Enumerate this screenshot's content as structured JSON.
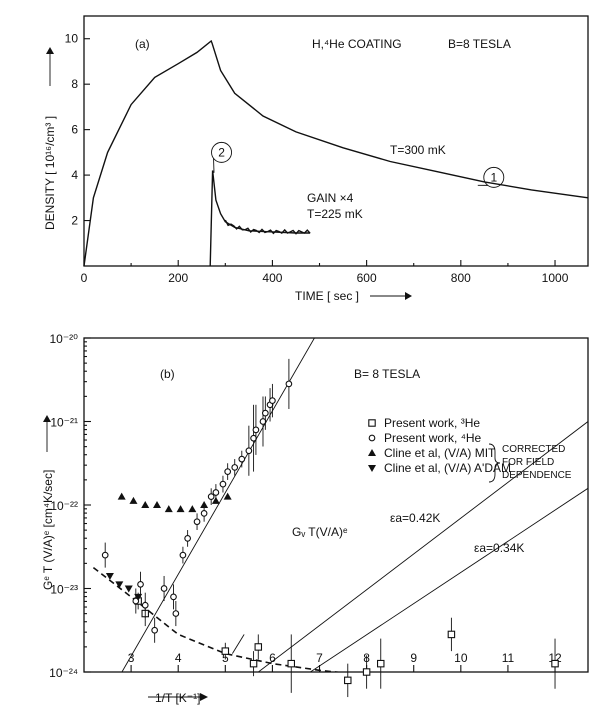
{
  "chart_data": [
    {
      "type": "line",
      "panel_label": "(a)",
      "annotation": "H,⁴He COATING",
      "annotation2": "B=8 TESLA",
      "xlabel": "TIME [ sec ]",
      "ylabel": "DENSITY [ 10¹⁶/cm³ ]",
      "xlim": [
        0,
        1070
      ],
      "ylim": [
        0,
        11
      ],
      "x_ticks": [
        0,
        200,
        400,
        600,
        800,
        1000
      ],
      "y_ticks": [
        2,
        4,
        6,
        8,
        10
      ],
      "series": [
        {
          "id": "1",
          "label": "T=300 mK",
          "marker": "1",
          "x": [
            0,
            20,
            50,
            100,
            150,
            200,
            240,
            270,
            272,
            290,
            320,
            380,
            450,
            550,
            650,
            750,
            850,
            950,
            1070
          ],
          "y": [
            0,
            3.0,
            5.0,
            7.1,
            8.3,
            8.9,
            9.4,
            9.9,
            9.8,
            8.6,
            7.6,
            6.6,
            5.9,
            5.2,
            4.6,
            4.15,
            3.7,
            3.35,
            3.0
          ]
        },
        {
          "id": "2",
          "label": "GAIN ×4",
          "label2": "T=225 mK",
          "marker": "2",
          "x": [
            268,
            273,
            280,
            290,
            300,
            320,
            350,
            400,
            450,
            480
          ],
          "y": [
            0,
            4.2,
            2.9,
            2.3,
            1.95,
            1.7,
            1.55,
            1.5,
            1.45,
            1.45
          ]
        }
      ]
    },
    {
      "type": "scatter",
      "panel_label": "(b)",
      "annotation": "B= 8 TESLA",
      "xlabel": "1/T [K⁻¹]",
      "ylabel": "Gᵉ T (V/A)ᵉ [cm⁴K/sec]",
      "xlim": [
        2.0,
        12.7
      ],
      "ylim_log10": [
        -24,
        -20
      ],
      "x_ticks": [
        3,
        4,
        5,
        6,
        7,
        8,
        9,
        10,
        11,
        12
      ],
      "y_tick_labels": [
        "10⁻²⁰",
        "10⁻²¹",
        "10⁻²²",
        "10⁻²³",
        "10⁻²⁴"
      ],
      "legend": [
        {
          "marker": "square",
          "text": "Present work, ³He"
        },
        {
          "marker": "circle",
          "text": "Present work, ⁴He"
        },
        {
          "marker": "triangle-up",
          "text": "Cline et al, (V/A) MIT"
        },
        {
          "marker": "triangle-down",
          "text": "Cline et al, (V/A) A'DAM"
        }
      ],
      "brace_note": [
        "CORRECTED",
        "FOR FIELD",
        "DEPENDENCE"
      ],
      "fit_label": "Gᵥ T(V/A)ᵉ",
      "line_labels": [
        "εa=0.42K",
        "εa=0.34K"
      ],
      "series": [
        {
          "name": "Present work, ³He",
          "marker": "square",
          "x": [
            3.15,
            3.3,
            5.0,
            5.6,
            5.7,
            6.4,
            7.6,
            8.0,
            8.3,
            9.8,
            12.0
          ],
          "y": [
            -23.15,
            -23.3,
            -23.75,
            -23.9,
            -23.7,
            -23.9,
            -24.1,
            -24.0,
            -23.9,
            -23.55,
            -23.9
          ],
          "err": [
            0.1,
            0.15,
            0.1,
            0.15,
            0.15,
            0.35,
            0.2,
            0.2,
            0.3,
            0.2,
            0.3
          ]
        },
        {
          "name": "Present work, ⁴He",
          "marker": "circle",
          "x": [
            2.45,
            3.1,
            3.2,
            3.3,
            3.5,
            3.7,
            3.9,
            3.95,
            4.1,
            4.2,
            4.4,
            4.55,
            4.7,
            4.8,
            4.95,
            5.05,
            5.2,
            5.35,
            5.5,
            5.6,
            5.65,
            5.8,
            5.85,
            5.95,
            6.0,
            6.35
          ],
          "y": [
            -22.6,
            -23.15,
            -22.95,
            -23.2,
            -23.5,
            -23.0,
            -23.1,
            -23.3,
            -22.6,
            -22.4,
            -22.2,
            -22.1,
            -21.9,
            -21.85,
            -21.75,
            -21.6,
            -21.55,
            -21.45,
            -21.35,
            -21.2,
            -21.1,
            -21.0,
            -20.9,
            -20.8,
            -20.75,
            -20.55
          ],
          "err": [
            0.15,
            0.15,
            0.15,
            0.15,
            0.15,
            0.15,
            0.15,
            0.15,
            0.1,
            0.1,
            0.1,
            0.1,
            0.1,
            0.1,
            0.1,
            0.1,
            0.1,
            0.1,
            0.3,
            0.4,
            0.3,
            0.3,
            0.2,
            0.2,
            0.2,
            0.3
          ]
        },
        {
          "name": "Cline et al, (V/A) MIT",
          "marker": "triangle-up",
          "x": [
            2.8,
            3.05,
            3.3,
            3.55,
            3.8,
            4.05,
            4.3,
            4.55,
            4.8,
            5.05
          ],
          "y": [
            -21.9,
            -21.95,
            -22.0,
            -22.0,
            -22.05,
            -22.05,
            -22.05,
            -22.0,
            -21.95,
            -21.9
          ],
          "err": []
        },
        {
          "name": "Cline et al, (V/A) A'DAM",
          "marker": "triangle-down",
          "x": [
            2.55,
            2.75,
            2.95,
            3.15
          ],
          "y": [
            -22.85,
            -22.95,
            -23.0,
            -23.1
          ],
          "err": []
        }
      ],
      "lines": [
        {
          "name": "steep",
          "x": [
            2.6,
            7.2
          ],
          "y": [
            -24.2,
            -19.7
          ],
          "style": "solid"
        },
        {
          "name": "0.42K",
          "x": [
            5.0,
            12.7
          ],
          "y": [
            -24.3,
            -21.0
          ],
          "style": "solid"
        },
        {
          "name": "0.34K",
          "x": [
            6.0,
            12.7
          ],
          "y": [
            -24.3,
            -21.8
          ],
          "style": "solid"
        },
        {
          "name": "fit",
          "x": [
            2.2,
            3.0,
            4.0,
            5.0,
            6.0,
            7.0,
            8.0,
            9.0,
            10.0,
            11.0,
            12.2
          ],
          "y": [
            -22.75,
            -23.1,
            -23.55,
            -23.78,
            -23.9,
            -23.98,
            -24.04,
            -24.08,
            -24.1,
            -24.12,
            -24.13
          ],
          "style": "dashed"
        }
      ]
    }
  ]
}
